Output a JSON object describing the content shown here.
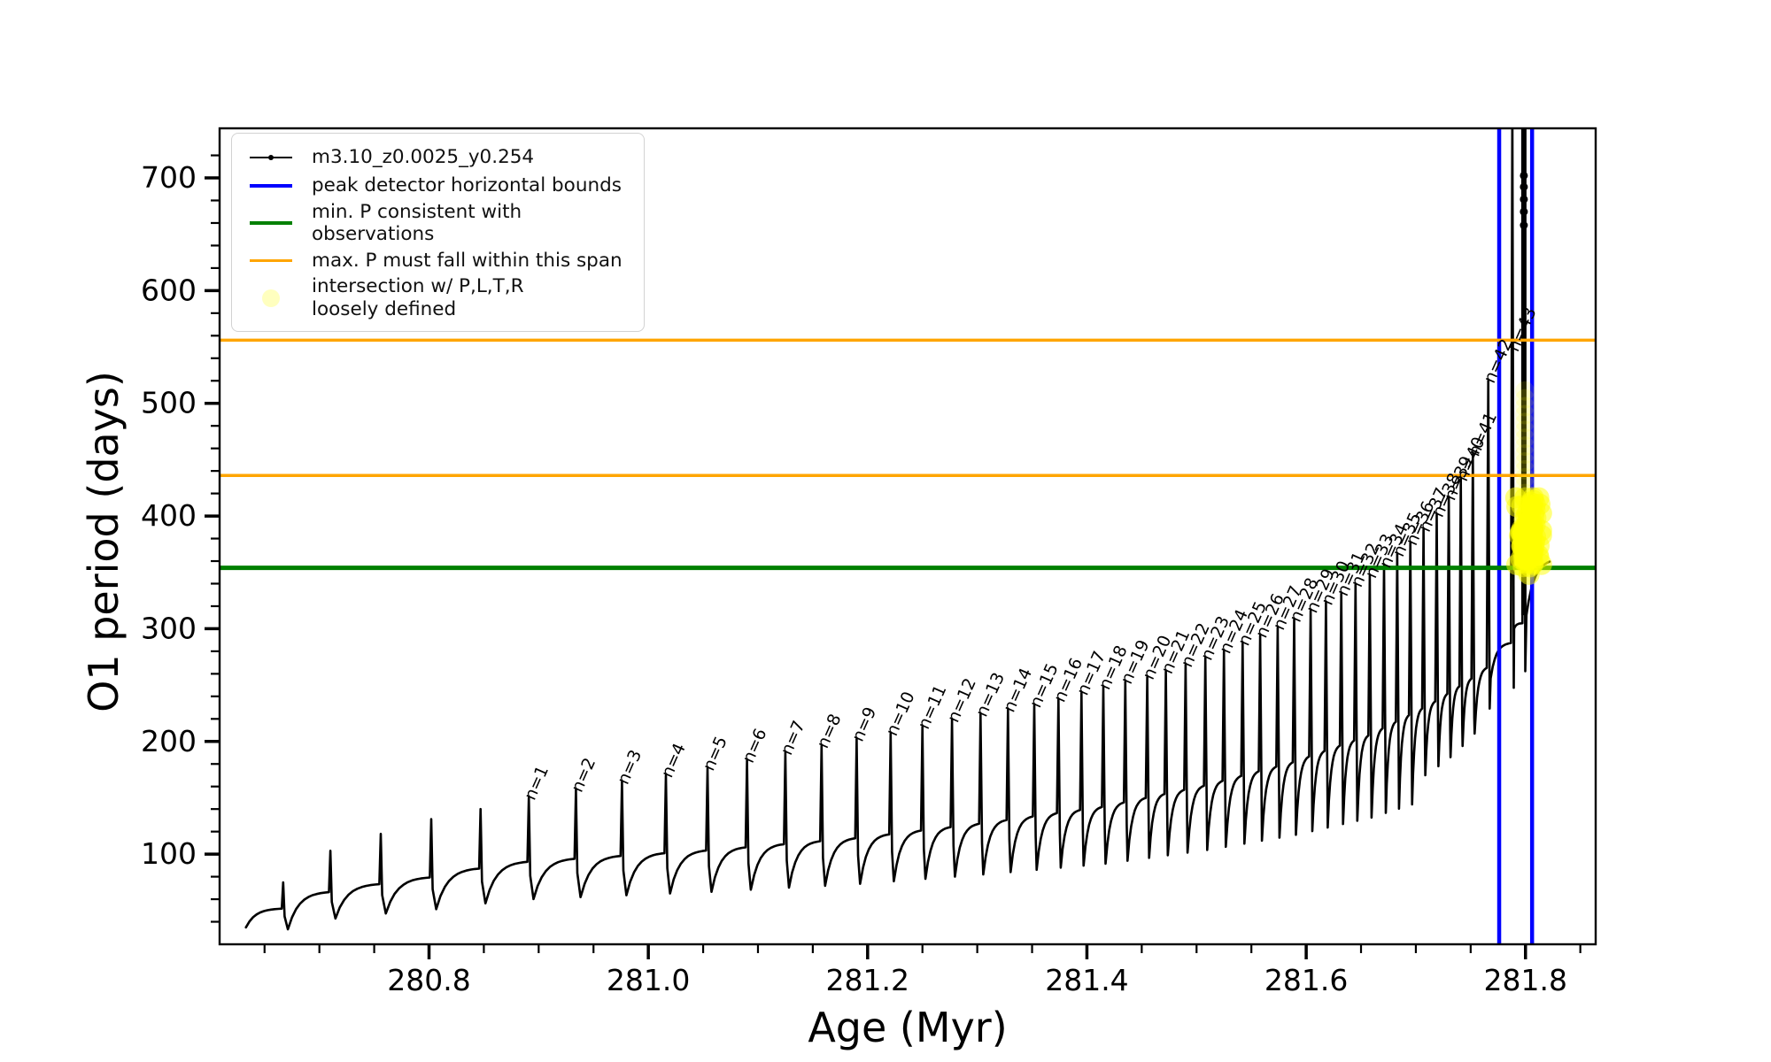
{
  "chart_data": {
    "type": "line",
    "title": "",
    "xlabel": "Age (Myr)",
    "ylabel": "O1 period (days)",
    "xlim": [
      280.609,
      281.864
    ],
    "ylim": [
      20,
      744
    ],
    "x_major_ticks": [
      280.8,
      281.0,
      281.2,
      281.4,
      281.6,
      281.8
    ],
    "x_tick_labels": [
      "280.8",
      "281.0",
      "281.2",
      "281.4",
      "281.6",
      "281.8"
    ],
    "x_minor_step": 0.05,
    "y_major_ticks": [
      100,
      200,
      300,
      400,
      500,
      600,
      700
    ],
    "y_tick_labels": [
      "100",
      "200",
      "300",
      "400",
      "500",
      "600",
      "700"
    ],
    "y_minor_step": 20,
    "grid": false,
    "legend": {
      "position": "upper left",
      "items": [
        {
          "label": "m3.10_z0.0025_y0.254",
          "type": "line-dot",
          "color": "#000000",
          "lw": 2
        },
        {
          "label": "peak detector horizontal bounds",
          "type": "line",
          "color": "#0000ff",
          "lw": 4.5
        },
        {
          "label": "min. P consistent with observations",
          "type": "line",
          "color": "#008000",
          "lw": 4.5
        },
        {
          "label": "max. P must fall within this span",
          "type": "line",
          "color": "#ffa500",
          "lw": 3
        },
        {
          "label": "intersection w/ P,L,T,R\nloosely defined",
          "type": "marker",
          "color": "#ffff00",
          "marker_alpha": 0.25
        }
      ]
    },
    "vlines": {
      "label": "peak detector horizontal bounds",
      "color": "#0000ff",
      "lw": 4.5,
      "x": [
        281.776,
        281.806
      ]
    },
    "hlines": [
      {
        "label": "min. P consistent with observations",
        "y": 354,
        "color": "#008000",
        "lw": 5
      },
      {
        "label": "max. P must fall within this span (lower)",
        "y": 436,
        "color": "#ffa500",
        "lw": 3.5
      },
      {
        "label": "max. P must fall within this span (upper)",
        "y": 556,
        "color": "#ffa500",
        "lw": 3.5
      }
    ],
    "series": {
      "name": "m3.10_z0.0025_y0.254",
      "color": "#000000",
      "lw": 2.6,
      "data_start": {
        "age": 280.633,
        "period": 35
      },
      "data_end": {
        "age": 281.822,
        "period": 362
      },
      "dip_fraction": 0.64,
      "baseline_anchors": [
        [
          280.633,
          35
        ],
        [
          280.667,
          52
        ],
        [
          280.71,
          67
        ],
        [
          280.756,
          74
        ],
        [
          280.802,
          80
        ],
        [
          280.847,
          88
        ],
        [
          280.891,
          94
        ],
        [
          281.054,
          104
        ],
        [
          281.19,
          115
        ],
        [
          281.303,
          128
        ],
        [
          281.415,
          143
        ],
        [
          281.508,
          162
        ],
        [
          281.589,
          183
        ],
        [
          281.658,
          207
        ],
        [
          281.719,
          237
        ],
        [
          281.752,
          257
        ],
        [
          281.774,
          272
        ],
        [
          281.788,
          288
        ],
        [
          281.7985,
          305
        ],
        [
          281.81,
          332
        ],
        [
          281.822,
          362
        ]
      ],
      "pulses": [
        {
          "age": 280.667,
          "peak": 75
        },
        {
          "age": 280.71,
          "peak": 103
        },
        {
          "age": 280.756,
          "peak": 118
        },
        {
          "age": 280.802,
          "peak": 131
        },
        {
          "age": 280.847,
          "peak": 140
        },
        {
          "n": 1,
          "age": 280.891,
          "peak": 150
        },
        {
          "n": 2,
          "age": 280.934,
          "peak": 157
        },
        {
          "n": 3,
          "age": 280.976,
          "peak": 164
        },
        {
          "n": 4,
          "age": 281.016,
          "peak": 170
        },
        {
          "n": 5,
          "age": 281.054,
          "peak": 176
        },
        {
          "n": 6,
          "age": 281.09,
          "peak": 183
        },
        {
          "n": 7,
          "age": 281.125,
          "peak": 190
        },
        {
          "n": 8,
          "age": 281.158,
          "peak": 196
        },
        {
          "n": 9,
          "age": 281.19,
          "peak": 202
        },
        {
          "n": 10,
          "age": 281.221,
          "peak": 207
        },
        {
          "n": 11,
          "age": 281.25,
          "peak": 213
        },
        {
          "n": 12,
          "age": 281.277,
          "peak": 219
        },
        {
          "n": 13,
          "age": 281.303,
          "peak": 224
        },
        {
          "n": 14,
          "age": 281.328,
          "peak": 228
        },
        {
          "n": 15,
          "age": 281.352,
          "peak": 232
        },
        {
          "n": 16,
          "age": 281.374,
          "peak": 237
        },
        {
          "n": 17,
          "age": 281.395,
          "peak": 243
        },
        {
          "n": 18,
          "age": 281.415,
          "peak": 248
        },
        {
          "n": 19,
          "age": 281.435,
          "peak": 253
        },
        {
          "n": 20,
          "age": 281.455,
          "peak": 257
        },
        {
          "n": 21,
          "age": 281.472,
          "peak": 262
        },
        {
          "n": 22,
          "age": 281.49,
          "peak": 268
        },
        {
          "n": 23,
          "age": 281.508,
          "peak": 274
        },
        {
          "n": 24,
          "age": 281.525,
          "peak": 280
        },
        {
          "n": 25,
          "age": 281.542,
          "peak": 287
        },
        {
          "n": 26,
          "age": 281.558,
          "peak": 294
        },
        {
          "n": 27,
          "age": 281.574,
          "peak": 301
        },
        {
          "n": 28,
          "age": 281.589,
          "peak": 308
        },
        {
          "n": 29,
          "age": 281.604,
          "peak": 316
        },
        {
          "n": 30,
          "age": 281.618,
          "peak": 323
        },
        {
          "n": 31,
          "age": 281.632,
          "peak": 331
        },
        {
          "n": 32,
          "age": 281.645,
          "peak": 339
        },
        {
          "n": 33,
          "age": 281.658,
          "peak": 347
        },
        {
          "n": 34,
          "age": 281.671,
          "peak": 356
        },
        {
          "n": 35,
          "age": 281.683,
          "peak": 366
        },
        {
          "n": 36,
          "age": 281.695,
          "peak": 376
        },
        {
          "n": 37,
          "age": 281.707,
          "peak": 388,
          "dip": 170
        },
        {
          "n": 38,
          "age": 281.719,
          "peak": 401,
          "dip": 178
        },
        {
          "n": 39,
          "age": 281.73,
          "peak": 416,
          "dip": 186
        },
        {
          "n": 40,
          "age": 281.741,
          "peak": 433,
          "dip": 196
        },
        {
          "n": 41,
          "age": 281.752,
          "peak": 455,
          "dip": 207
        },
        {
          "n": 42,
          "age": 281.766,
          "peak": 520,
          "dip": 256
        },
        {
          "n": 43,
          "age": 281.788,
          "peak": 760,
          "dip": 300
        },
        {
          "age": 281.7985,
          "peak": 760,
          "dip": 312,
          "thick": true
        }
      ],
      "label_value_cap": 548,
      "thick_spike_knots": {
        "age": 281.7985,
        "values": [
          658,
          670,
          681,
          692,
          702
        ],
        "r": 4.5
      }
    },
    "yellow_scatter": {
      "label": "intersection w/ P,L,T,R loosely defined",
      "color": "#ffff00",
      "cluster": {
        "cx": 281.8025,
        "cy": 381,
        "sx": 0.0055,
        "sy": 16,
        "count": 120,
        "r": 12,
        "alpha": 0.5
      },
      "trail": {
        "x": 281.7995,
        "v_min": 350,
        "v_max": 515,
        "step": 7,
        "r": 11,
        "alpha": 0.13
      }
    }
  }
}
